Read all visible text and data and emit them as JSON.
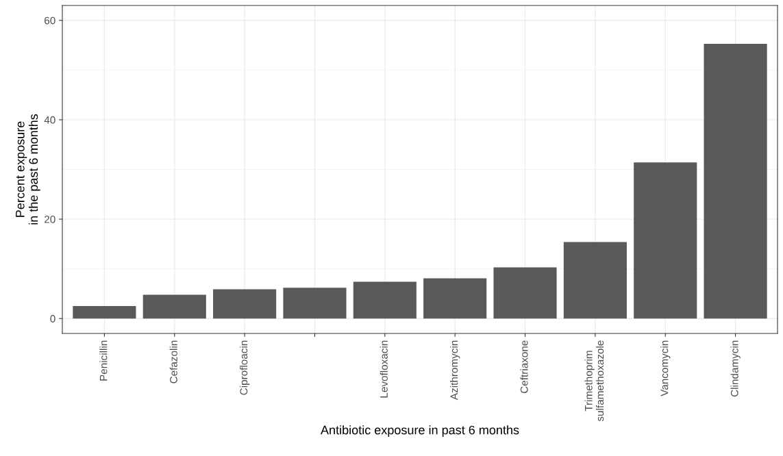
{
  "chart_data": {
    "type": "bar",
    "categories": [
      "Penicillin",
      "Cefazolin",
      "Ciprofloacin",
      null,
      "Levofloxacin",
      "Azithromycin",
      "Ceftriaxone",
      "Trimethoprim\nsulfamethoxazole",
      "Vancomycin",
      "Clindamycin"
    ],
    "values": [
      2.5,
      4.8,
      5.9,
      6.2,
      7.4,
      8.1,
      10.3,
      15.4,
      31.4,
      55.3
    ],
    "color": "#595959",
    "xlabel": "Antibiotic exposure in past 6 months",
    "ylabel": "Percent exposure\nin the past 6 months",
    "ylim": [
      -3,
      63
    ],
    "yticks": [
      0,
      20,
      40,
      60
    ],
    "grid": true
  }
}
